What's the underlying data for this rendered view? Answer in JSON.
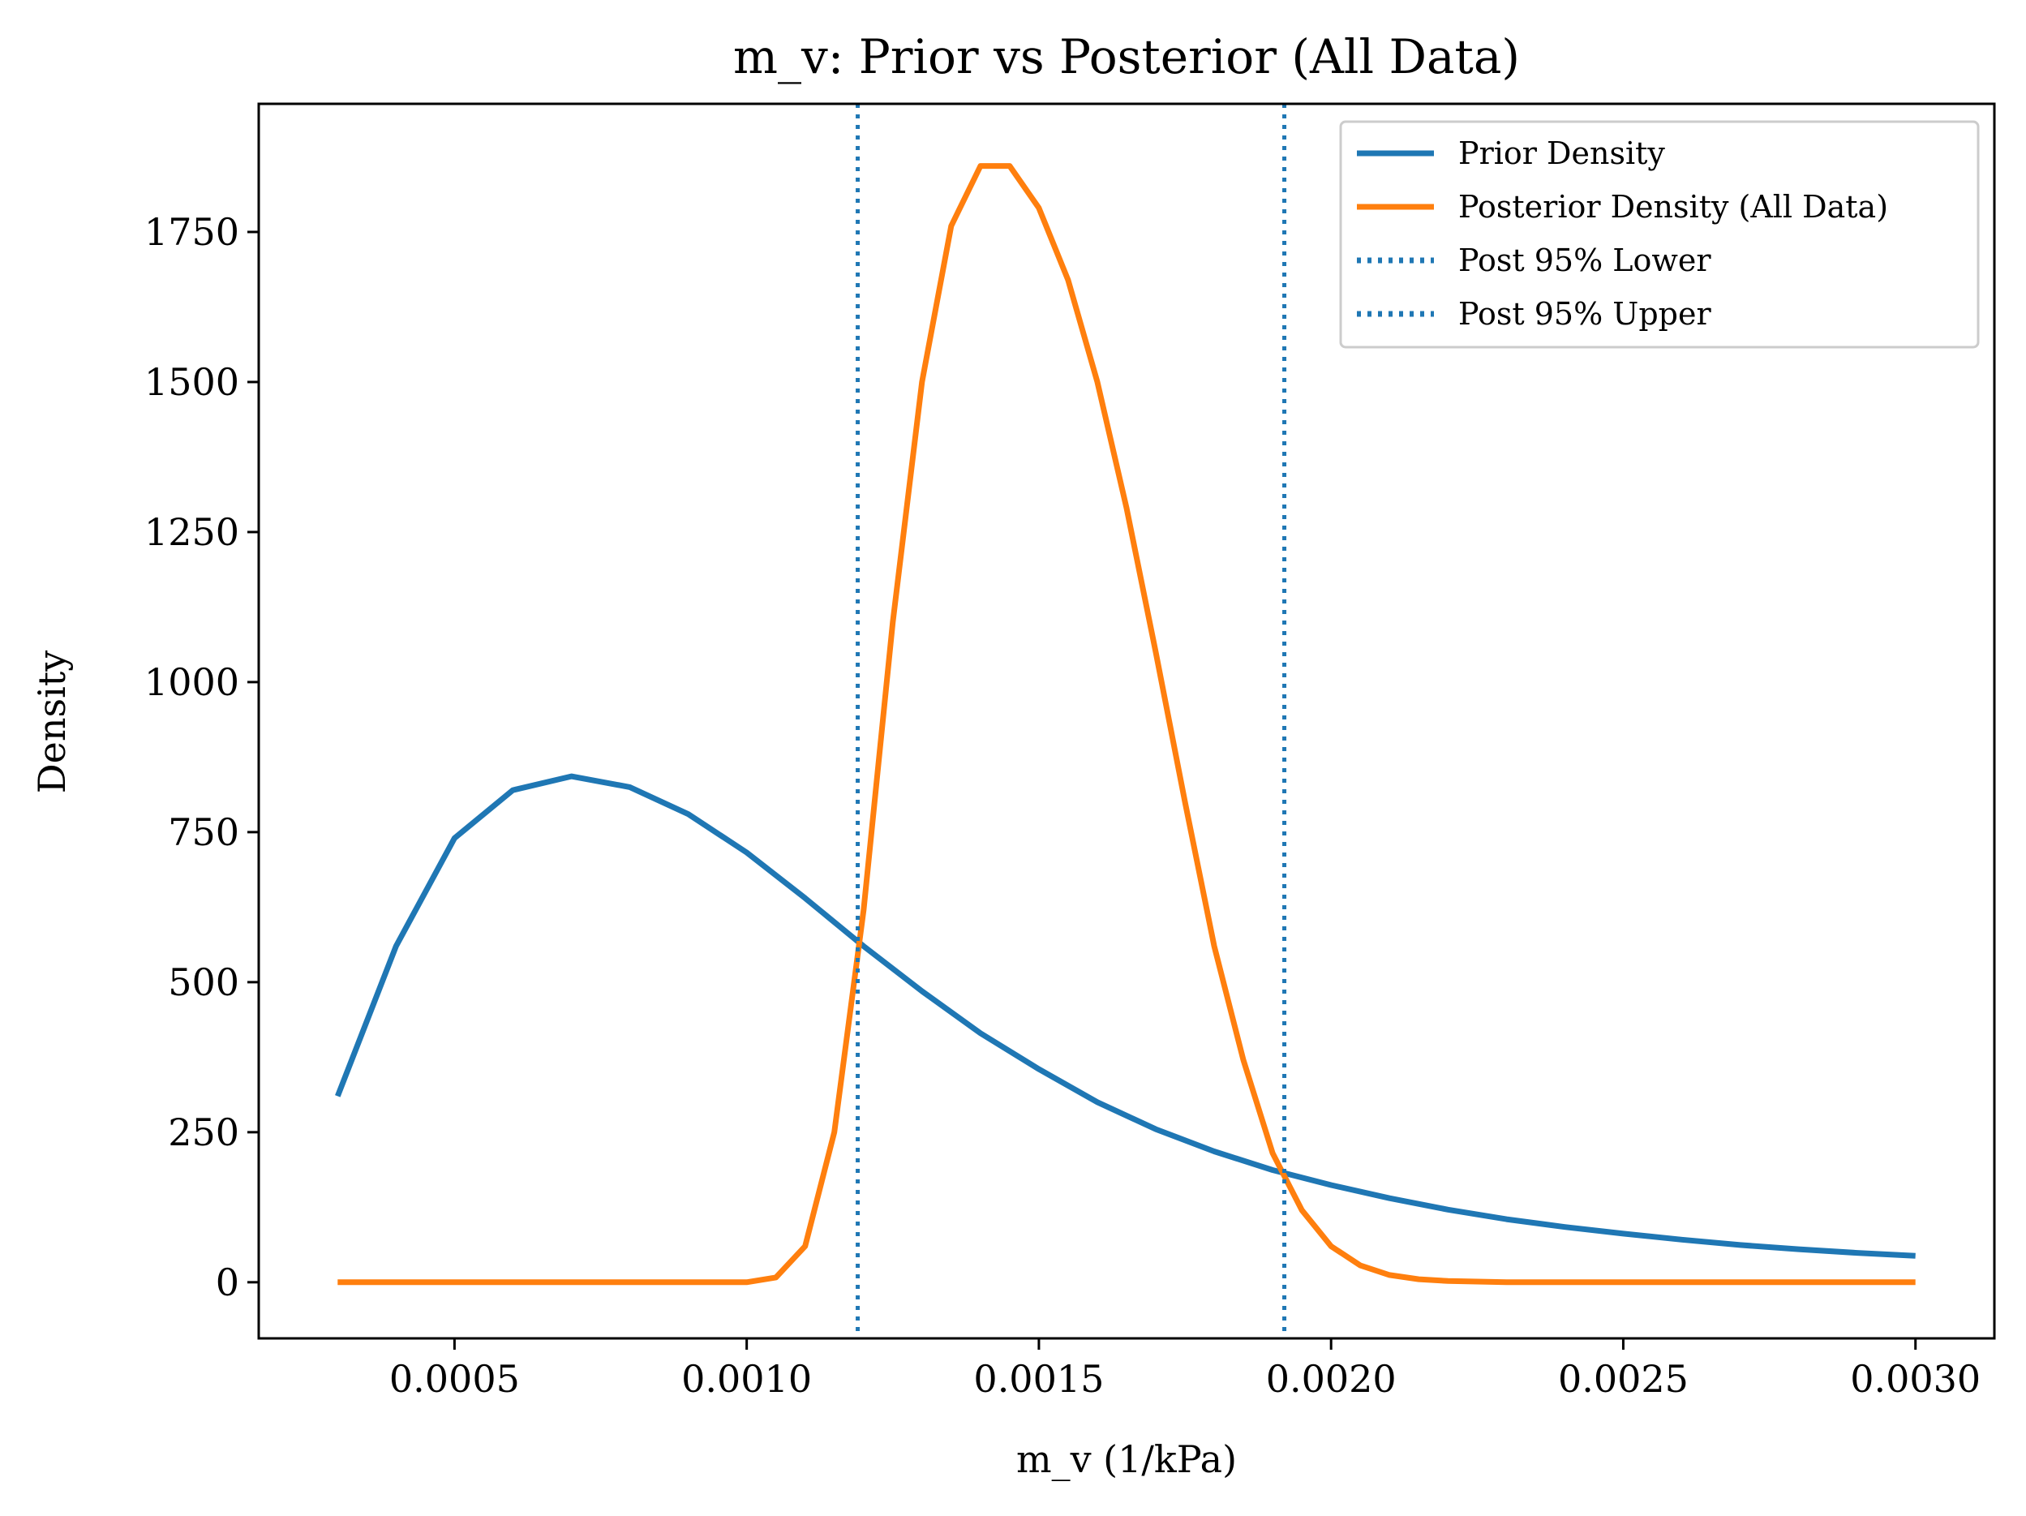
{
  "chart_data": {
    "type": "line",
    "title": "m_v: Prior vs Posterior (All Data)",
    "xlabel": "m_v (1/kPa)",
    "ylabel": "Density",
    "xlim": [
      0.000165,
      0.003135
    ],
    "ylim": [
      -93.5,
      1963.5
    ],
    "x_ticks": [
      0.0005,
      0.001,
      0.0015,
      0.002,
      0.0025,
      0.003
    ],
    "x_tick_labels": [
      "0.0005",
      "0.0010",
      "0.0015",
      "0.0020",
      "0.0025",
      "0.0030"
    ],
    "y_ticks": [
      0,
      250,
      500,
      750,
      1000,
      1250,
      1500,
      1750
    ],
    "y_tick_labels": [
      "0",
      "250",
      "500",
      "750",
      "1000",
      "1250",
      "1500",
      "1750"
    ],
    "grid": false,
    "legend_position": "top-right",
    "series": [
      {
        "name": "Prior Density",
        "color": "#1f77b4",
        "style": "solid",
        "x": [
          0.0003,
          0.0004,
          0.0005,
          0.0006,
          0.0007,
          0.0008,
          0.0009,
          0.001,
          0.0011,
          0.0012,
          0.0013,
          0.0014,
          0.0015,
          0.0016,
          0.0017,
          0.0018,
          0.0019,
          0.002,
          0.0021,
          0.0022,
          0.0023,
          0.0024,
          0.0025,
          0.0026,
          0.0027,
          0.0028,
          0.0029,
          0.003
        ],
        "y": [
          310,
          560,
          740,
          820,
          843,
          825,
          780,
          716,
          640,
          560,
          485,
          415,
          355,
          300,
          255,
          218,
          187,
          162,
          140,
          121,
          105,
          92,
          81,
          71,
          62,
          55,
          49,
          44
        ]
      },
      {
        "name": "Posterior Density (All Data)",
        "color": "#ff7f0e",
        "style": "solid",
        "x": [
          0.0003,
          0.0005,
          0.0007,
          0.0009,
          0.001,
          0.00105,
          0.0011,
          0.00115,
          0.0012,
          0.00125,
          0.0013,
          0.00135,
          0.0014,
          0.00145,
          0.0015,
          0.00155,
          0.0016,
          0.00165,
          0.0017,
          0.00175,
          0.0018,
          0.00185,
          0.0019,
          0.00195,
          0.002,
          0.00205,
          0.0021,
          0.00215,
          0.0022,
          0.0023,
          0.0025,
          0.003
        ],
        "y": [
          0,
          0,
          0,
          0,
          0,
          8,
          60,
          250,
          620,
          1100,
          1500,
          1760,
          1860,
          1860,
          1790,
          1670,
          1500,
          1290,
          1050,
          800,
          560,
          370,
          215,
          120,
          60,
          28,
          12,
          5,
          2,
          0,
          0,
          0
        ]
      },
      {
        "name": "Post 95% Lower",
        "color": "#1f77b4",
        "style": "dotted",
        "vline": 0.00119
      },
      {
        "name": "Post 95% Upper",
        "color": "#1f77b4",
        "style": "dotted",
        "vline": 0.00192
      }
    ]
  }
}
